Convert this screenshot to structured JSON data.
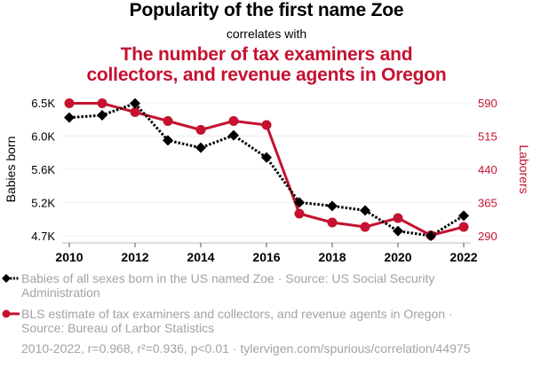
{
  "header": {
    "title": "Popularity of the first name Zoe",
    "connector": "correlates with",
    "subtitle": "The number of tax examiners and collectors, and revenue agents in Oregon"
  },
  "colors": {
    "series1": "#000000",
    "series2": "#c41230",
    "grid": "#eeeeee",
    "axis": "#bbbbbb",
    "muted_text": "#a3a3a3"
  },
  "legend": [
    {
      "icon": "black-dashed-diamond-line-icon",
      "text": "Babies of all sexes born in the US named Zoe · Source: US Social Security Administration"
    },
    {
      "icon": "red-solid-circle-line-icon",
      "text": "BLS estimate of tax examiners and collectors, and revenue agents in Oregon · Source: Bureau of Larbor Statistics"
    }
  ],
  "footer": "2010-2022, r=0.968, r²=0.936, p<0.01 · tylervigen.com/spurious/correlation/44975",
  "chart_data": {
    "type": "line",
    "title": "Popularity of the first name Zoe",
    "subtitle": "The number of tax examiners and collectors, and revenue agents in Oregon",
    "x": [
      2010,
      2011,
      2012,
      2013,
      2014,
      2015,
      2016,
      2017,
      2018,
      2019,
      2020,
      2021,
      2022
    ],
    "xticks": [
      "2010",
      "2012",
      "2014",
      "2016",
      "2018",
      "2020",
      "2022"
    ],
    "xlabel": "",
    "series": [
      {
        "name": "Babies of all sexes born in the US named Zoe",
        "axis": "left",
        "style": "dotted-black-diamond",
        "values": [
          6300,
          6332,
          6492,
          5992,
          5892,
          6060,
          5760,
          5152,
          5104,
          5044,
          4764,
          4700,
          4972
        ]
      },
      {
        "name": "BLS estimate of tax examiners and collectors, and revenue agents in Oregon",
        "axis": "right",
        "style": "solid-red-circle",
        "values": [
          589,
          589,
          569,
          549,
          529,
          549,
          540,
          340,
          320,
          310,
          330,
          291,
          310
        ]
      }
    ],
    "left_axis": {
      "label": "Babies born",
      "ylim": [
        4700,
        6500
      ],
      "ticks": [
        6500,
        6050,
        5600,
        5150,
        4700
      ],
      "tick_labels": [
        "6.5K",
        "6.0K",
        "5.6K",
        "5.2K",
        "4.7K"
      ]
    },
    "right_axis": {
      "label": "Laborers",
      "ylim": [
        290,
        590
      ],
      "ticks": [
        590,
        515,
        440,
        365,
        290
      ],
      "tick_labels": [
        "590",
        "515",
        "440",
        "365",
        "290"
      ]
    },
    "grid": true,
    "legend_position": "bottom-left"
  }
}
